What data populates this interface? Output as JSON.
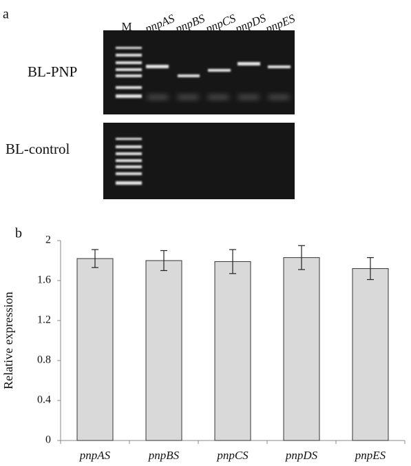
{
  "panel_a": {
    "label": "a",
    "marker": "M",
    "lanes": [
      "pnpAS",
      "pnpBS",
      "pnpCS",
      "pnpDS",
      "pnpES"
    ],
    "rows": [
      "BL-PNP",
      "BL-control"
    ]
  },
  "panel_b": {
    "label": "b"
  },
  "chart_data": {
    "type": "bar",
    "y_label": "Relative expression",
    "categories": [
      "pnpAS",
      "pnpBS",
      "pnpCS",
      "pnpDS",
      "pnpES"
    ],
    "values": [
      1.82,
      1.8,
      1.79,
      1.83,
      1.72
    ],
    "errors": [
      0.09,
      0.1,
      0.12,
      0.12,
      0.11
    ],
    "color": "#d9d9d9",
    "ylim": [
      0,
      2
    ],
    "yticks": [
      0,
      0.4,
      0.8,
      1.2,
      1.6,
      2
    ],
    "grid": false
  }
}
